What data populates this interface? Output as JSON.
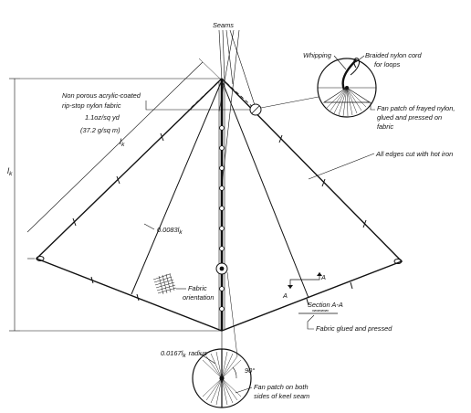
{
  "labels": {
    "seams": "Seams",
    "fabric_line1": "Non porous acrylic-coated",
    "fabric_line2": "rip-stop nylon fabric",
    "fabric_weight": "1.1oz/sq yd",
    "fabric_metric": "(37.2 g/sq m)",
    "lk_side": "l",
    "lk_side_sub": "k",
    "lk_height": "l",
    "lk_height_sub": "k",
    "spar_dia": "0.0083l",
    "spar_dia_sub": "k",
    "fabric_orientation_1": "Fabric",
    "fabric_orientation_2": "orientation",
    "whipping": "Whipping",
    "braided_1": "Braided nylon cord",
    "braided_2": "for loops",
    "fan_patch_top_1": "Fan patch of frayed nylon,",
    "fan_patch_top_2": "glued and pressed on",
    "fan_patch_top_3": "fabric",
    "edges": "All edges cut with hot iron",
    "section_a": "A",
    "section_a2": "A",
    "section_title": "Section A-A",
    "fabric_glued": "Fabric glued and pressed",
    "radius_label": "0.0167l",
    "radius_sub": "k",
    "radius_word": "radius",
    "angle": "90°",
    "fan_bottom_1": "Fan patch on both",
    "fan_bottom_2": "sides of keel seam"
  }
}
